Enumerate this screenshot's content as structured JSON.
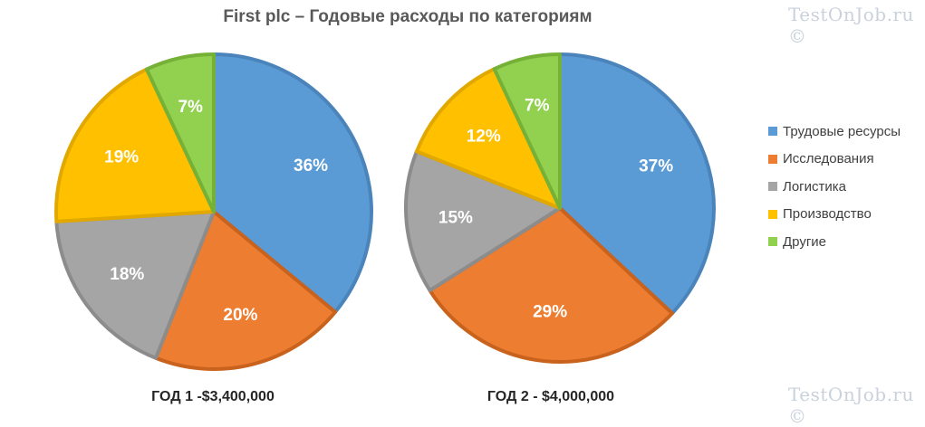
{
  "watermark": "TestOnJob.ru ©",
  "chart_data": {
    "type": "pie",
    "title": "First plc – Годовые расходы по категориям",
    "legend_position": "right",
    "categories": [
      "Трудовые ресурсы",
      "Исследования",
      "Логистика",
      "Производство",
      "Другие"
    ],
    "colors": [
      "#5b9bd5",
      "#ed7d31",
      "#a5a5a5",
      "#ffc000",
      "#92d050"
    ],
    "border_colors": [
      "#4a84bb",
      "#c8621c",
      "#8c8c8c",
      "#e0a800",
      "#75b037"
    ],
    "series": [
      {
        "name": "ГОД 1 -$3,400,000",
        "values": [
          36,
          20,
          18,
          19,
          7
        ]
      },
      {
        "name": "ГОД 2 - $4,000,000",
        "values": [
          37,
          29,
          15,
          12,
          7
        ]
      }
    ]
  }
}
